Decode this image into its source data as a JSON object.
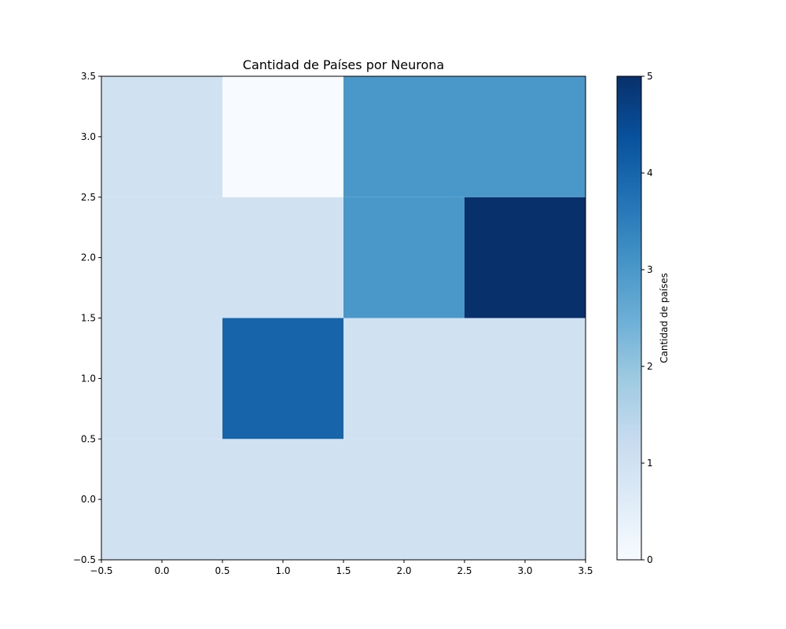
{
  "chart_data": {
    "type": "heatmap",
    "title": "Cantidad de Países por Neurona",
    "xlabel": "",
    "ylabel": "",
    "xlim": [
      -0.5,
      3.5
    ],
    "ylim": [
      -0.5,
      3.5
    ],
    "x_ticks": [
      "−0.5",
      "0.0",
      "0.5",
      "1.0",
      "1.5",
      "2.0",
      "2.5",
      "3.0",
      "3.5"
    ],
    "y_ticks": [
      "−0.5",
      "0.0",
      "0.5",
      "1.0",
      "1.5",
      "2.0",
      "2.5",
      "3.0",
      "3.5"
    ],
    "x_tick_values": [
      -0.5,
      0.0,
      0.5,
      1.0,
      1.5,
      2.0,
      2.5,
      3.0,
      3.5
    ],
    "y_tick_values": [
      -0.5,
      0.0,
      0.5,
      1.0,
      1.5,
      2.0,
      2.5,
      3.0,
      3.5
    ],
    "grid": false,
    "colormap": "Blues",
    "cells": [
      {
        "x": 0,
        "y": 0,
        "value": 1
      },
      {
        "x": 1,
        "y": 0,
        "value": 1
      },
      {
        "x": 2,
        "y": 0,
        "value": 1
      },
      {
        "x": 3,
        "y": 0,
        "value": 1
      },
      {
        "x": 0,
        "y": 1,
        "value": 1
      },
      {
        "x": 1,
        "y": 1,
        "value": 4
      },
      {
        "x": 2,
        "y": 1,
        "value": 1
      },
      {
        "x": 3,
        "y": 1,
        "value": 1
      },
      {
        "x": 0,
        "y": 2,
        "value": 1
      },
      {
        "x": 1,
        "y": 2,
        "value": 1
      },
      {
        "x": 2,
        "y": 2,
        "value": 3
      },
      {
        "x": 3,
        "y": 2,
        "value": 5
      },
      {
        "x": 0,
        "y": 3,
        "value": 1
      },
      {
        "x": 1,
        "y": 3,
        "value": 0
      },
      {
        "x": 2,
        "y": 3,
        "value": 3
      },
      {
        "x": 3,
        "y": 3,
        "value": 3
      }
    ],
    "colorbar": {
      "label": "Cantidad de países",
      "min": 0,
      "max": 5,
      "ticks": [
        "0",
        "1",
        "2",
        "3",
        "4",
        "5"
      ],
      "tick_values": [
        0,
        1,
        2,
        3,
        4,
        5
      ]
    }
  }
}
